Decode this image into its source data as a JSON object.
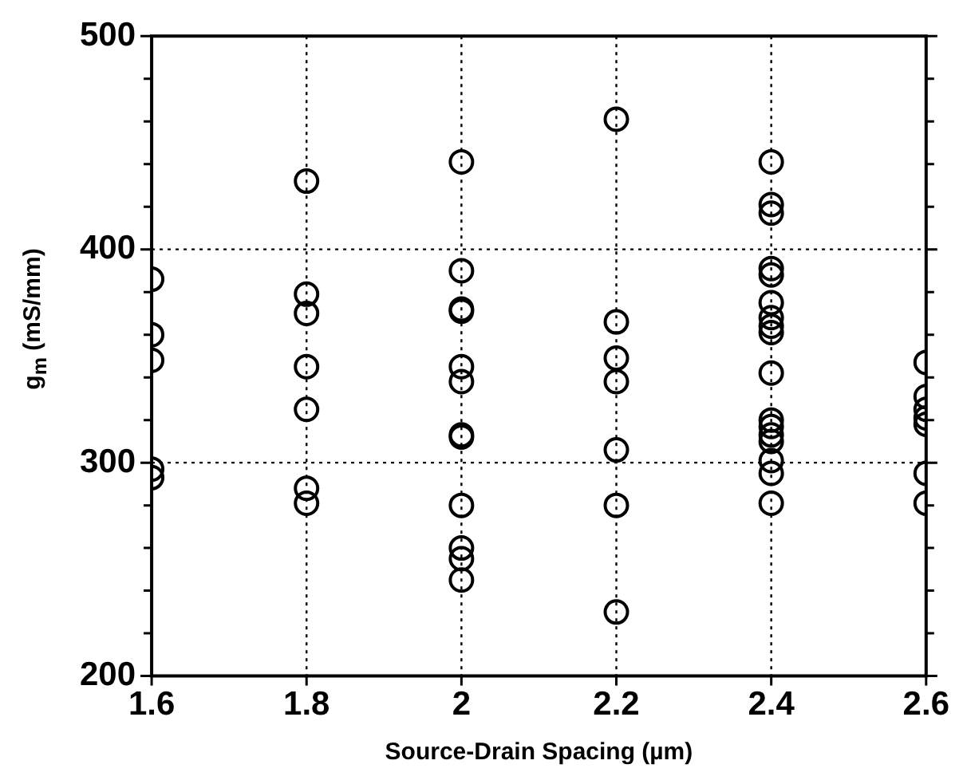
{
  "chart_data": {
    "type": "scatter",
    "xlabel": "Source-Drain Spacing (µm)",
    "ylabel": "g$_{m}$ (mS/mm)",
    "marker": "circle",
    "grid": true,
    "legend": false,
    "xlim": [
      1.6,
      2.6
    ],
    "xticks": [
      1.6,
      1.8,
      2,
      2.2,
      2.4,
      2.6
    ],
    "ylim": [
      200,
      500
    ],
    "yticks": [
      200,
      {
        "value": 220,
        "label": null
      },
      {
        "value": 240,
        "label": null
      },
      {
        "value": 260,
        "label": null
      },
      {
        "value": 280,
        "label": null
      },
      300,
      {
        "value": 320,
        "label": null
      },
      {
        "value": 340,
        "label": null
      },
      {
        "value": 360,
        "label": null
      },
      {
        "value": 380,
        "label": null
      },
      400,
      {
        "value": 420,
        "label": null
      },
      {
        "value": 440,
        "label": null
      },
      {
        "value": 460,
        "label": null
      },
      {
        "value": 480,
        "label": null
      },
      500
    ],
    "series": [
      {
        "color": "#000000",
        "x": [
          1.6,
          1.6,
          1.6,
          1.6,
          1.6,
          1.8,
          1.8,
          1.8,
          1.8,
          1.8,
          1.8,
          1.8,
          2,
          2,
          2,
          2,
          2,
          2,
          2,
          2,
          2,
          2,
          2,
          2,
          2.2,
          2.2,
          2.2,
          2.2,
          2.2,
          2.2,
          2.2,
          2.4,
          2.4,
          2.4,
          2.4,
          2.4,
          2.4,
          2.4,
          2.4,
          2.4,
          2.4,
          2.4,
          2.4,
          2.4,
          2.4,
          2.4,
          2.4,
          2.4,
          2.6,
          2.6,
          2.6,
          2.6,
          2.6,
          2.6,
          2.6
        ],
        "values": [
          386,
          360,
          348,
          297,
          293,
          432,
          379,
          370,
          345,
          325,
          288,
          281,
          441,
          390,
          372,
          371,
          345,
          338,
          313,
          312,
          280,
          260,
          255,
          245,
          461,
          366,
          349,
          338,
          306,
          280,
          230,
          441,
          421,
          417,
          391,
          388,
          375,
          368,
          364,
          361,
          342,
          320,
          317,
          313,
          310,
          301,
          295,
          281,
          347,
          331,
          325,
          321,
          318,
          295,
          281
        ]
      }
    ]
  }
}
